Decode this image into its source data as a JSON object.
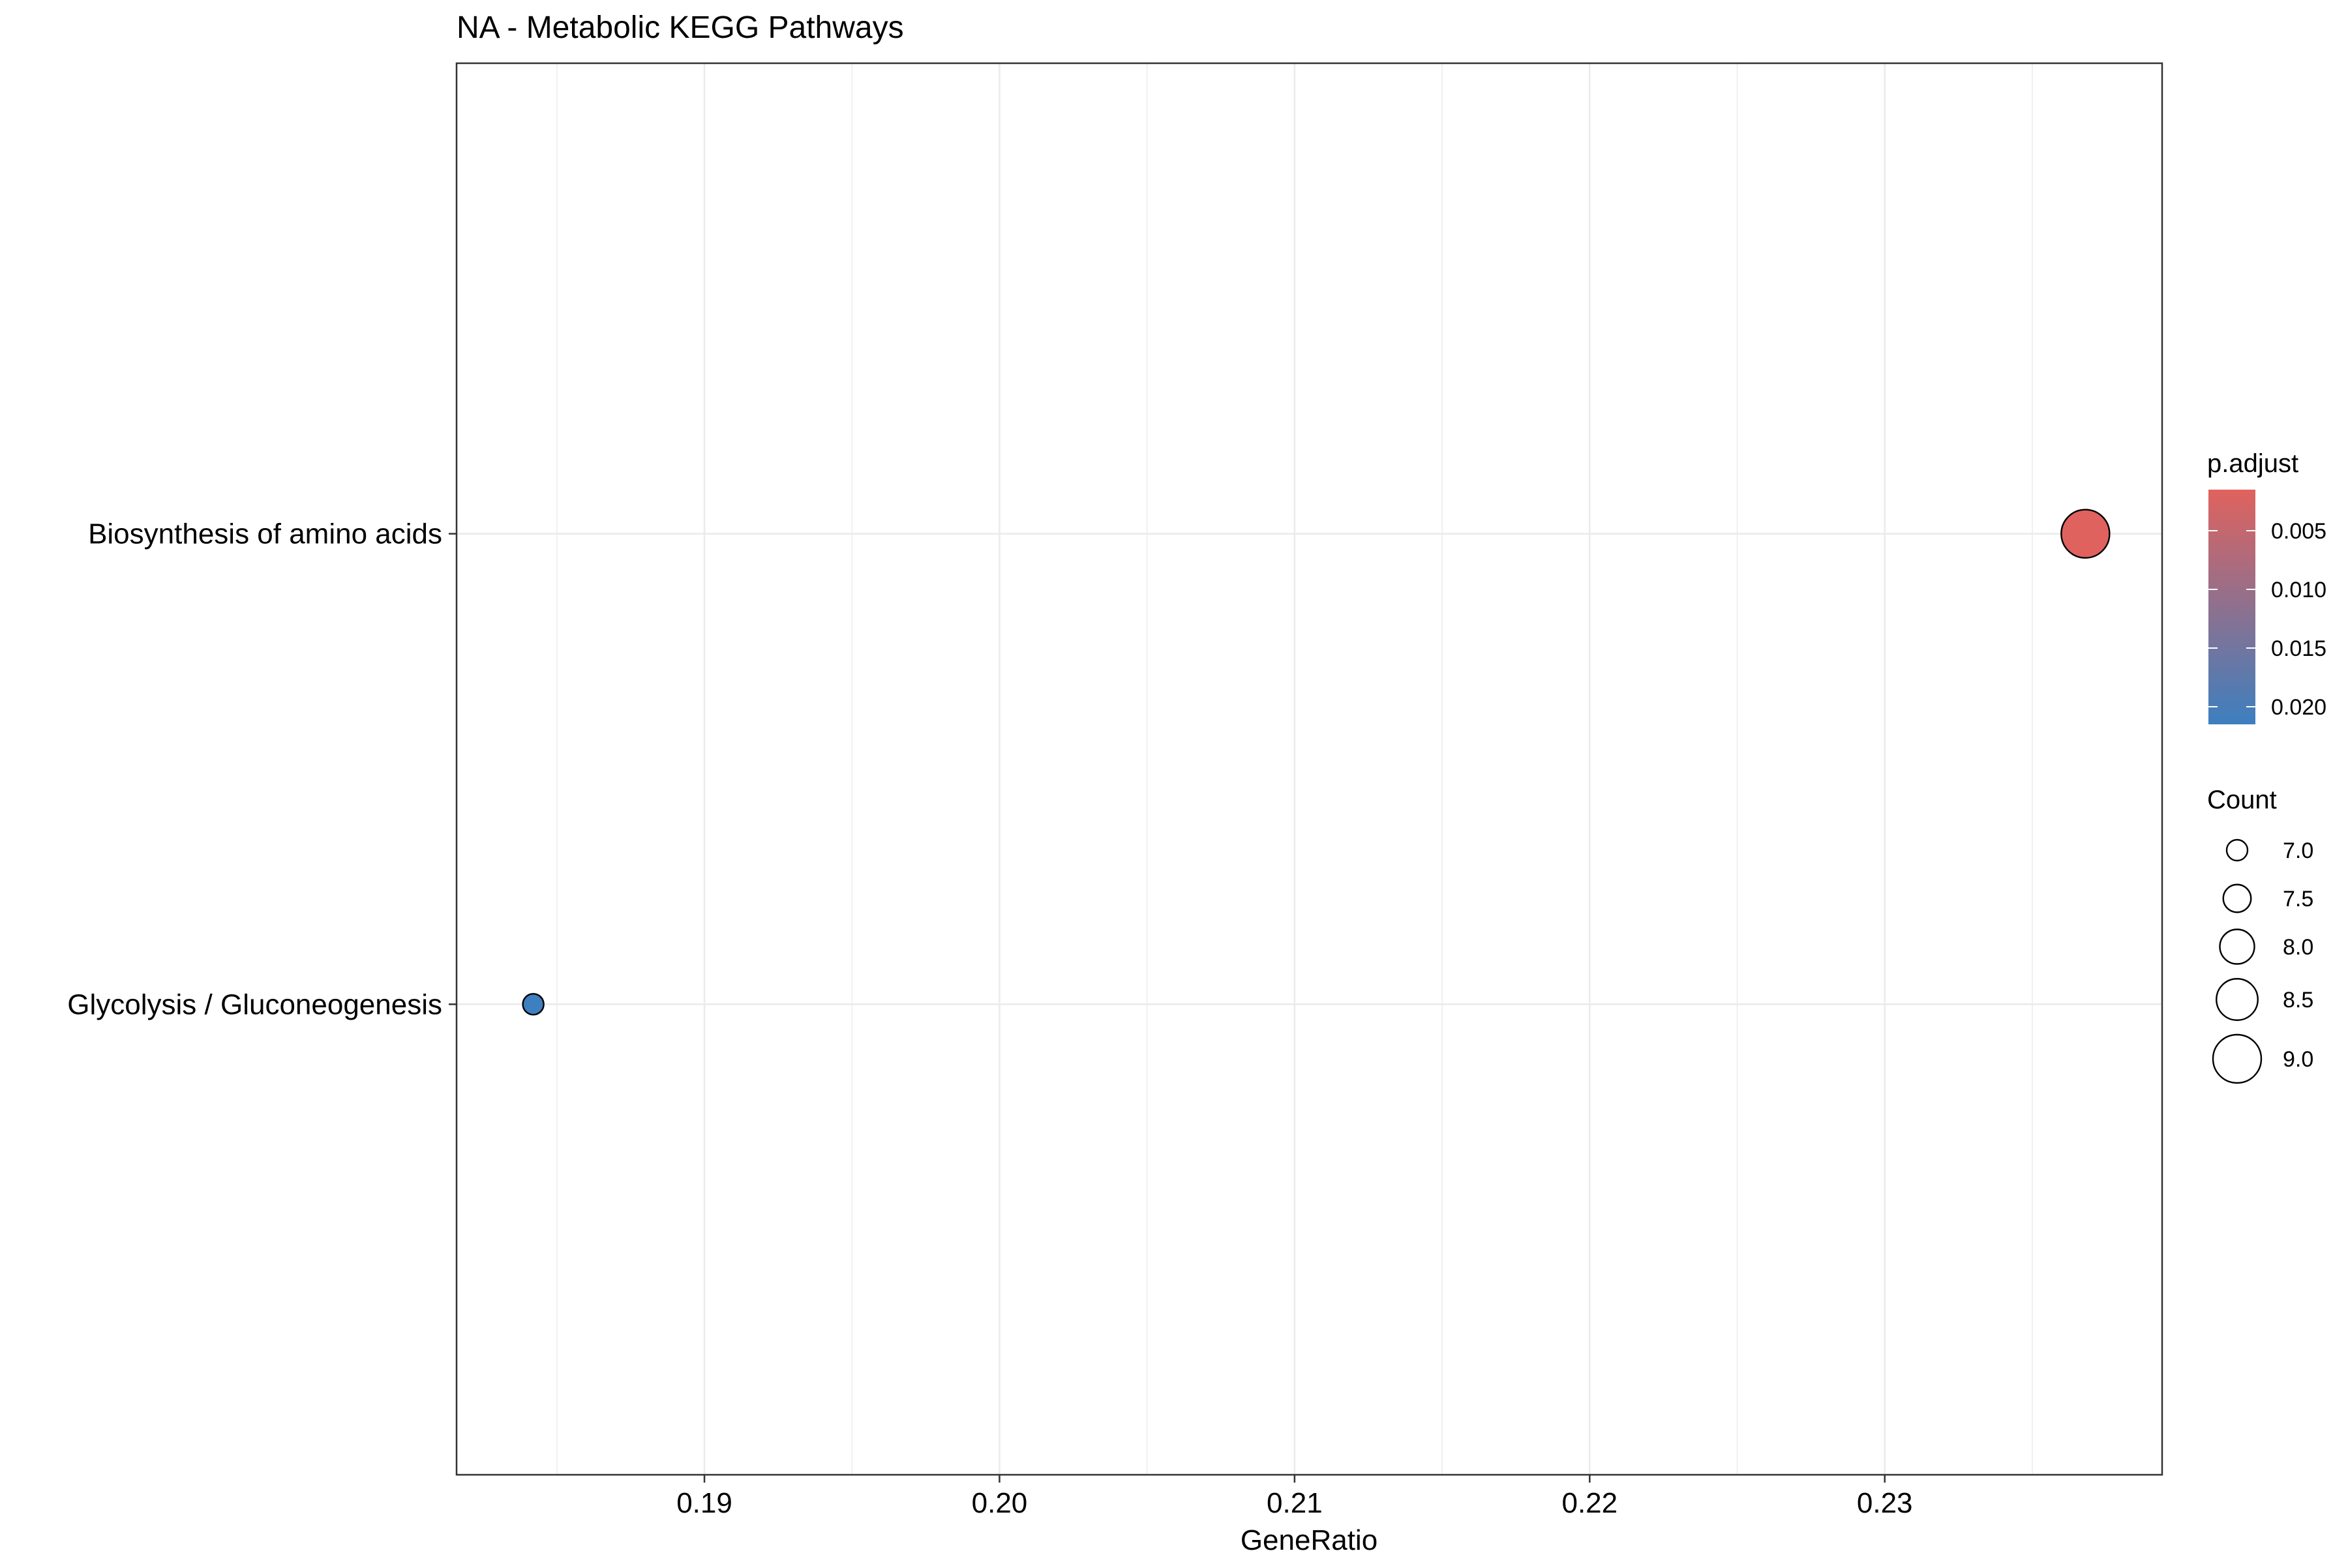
{
  "chart_data": {
    "type": "scatter",
    "title": "NA - Metabolic KEGG Pathways",
    "xlabel": "GeneRatio",
    "ylabel": "",
    "xlim": [
      0.1816,
      0.2394
    ],
    "x_ticks": [
      0.19,
      0.2,
      0.21,
      0.22,
      0.23
    ],
    "x_tick_labels": [
      "0.19",
      "0.20",
      "0.21",
      "0.22",
      "0.23"
    ],
    "categories": [
      "Biosynthesis of amino acids",
      "Glycolysis / Gluconeogenesis"
    ],
    "points": [
      {
        "category": "Biosynthesis of amino acids",
        "x": 0.2368,
        "count": 9,
        "p_adjust": 0.0025,
        "color": "#E0625E"
      },
      {
        "category": "Glycolysis / Gluconeogenesis",
        "x": 0.1842,
        "count": 7,
        "p_adjust": 0.0215,
        "color": "#3D7FBF"
      }
    ],
    "grid": true,
    "legend_position": "right",
    "color_legend": {
      "title": "p.adjust",
      "range": [
        0.0015,
        0.0215
      ],
      "ticks": [
        0.005,
        0.01,
        0.015,
        0.02
      ],
      "tick_labels": [
        "0.005",
        "0.010",
        "0.015",
        "0.020"
      ],
      "low_color": "#E0625E",
      "high_color": "#3D7FBF"
    },
    "size_legend": {
      "title": "Count",
      "values": [
        7.0,
        7.5,
        8.0,
        8.5,
        9.0
      ],
      "labels": [
        "7.0",
        "7.5",
        "8.0",
        "8.5",
        "9.0"
      ]
    }
  }
}
